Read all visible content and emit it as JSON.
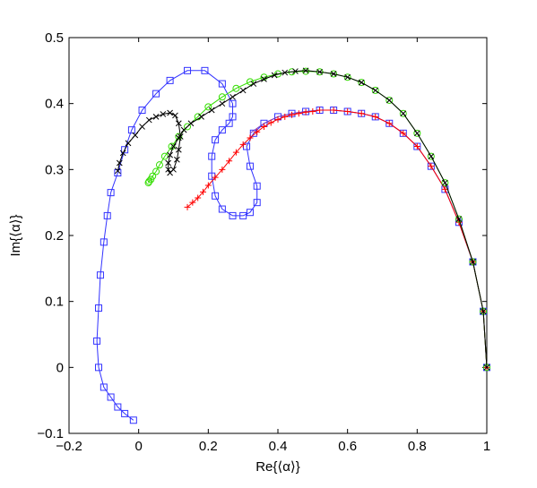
{
  "chart_data": {
    "type": "line",
    "xlabel": "Re{⟨α⟩}",
    "ylabel": "Im{⟨α⟩}",
    "xlim": [
      -0.2,
      1
    ],
    "ylim": [
      -0.1,
      0.5
    ],
    "xticks": [
      -0.2,
      0,
      0.2,
      0.4,
      0.6,
      0.8,
      1
    ],
    "yticks": [
      -0.1,
      0,
      0.1,
      0.2,
      0.3,
      0.4,
      0.5
    ],
    "xtick_labels": [
      "−0.2",
      "0",
      "0.2",
      "0.4",
      "0.6",
      "0.8",
      "1"
    ],
    "ytick_labels": [
      "−0.1",
      "0",
      "0.1",
      "0.2",
      "0.3",
      "0.4",
      "0.5"
    ],
    "grid": false,
    "legend": "none",
    "series": [
      {
        "color": "#3333ff",
        "marker": "square",
        "x": [
          1.0,
          0.99,
          0.96,
          0.92,
          0.88,
          0.84,
          0.8,
          0.76,
          0.72,
          0.68,
          0.64,
          0.6,
          0.56,
          0.52,
          0.48,
          0.44,
          0.4,
          0.36,
          0.33,
          0.31,
          0.32,
          0.34,
          0.34,
          0.32,
          0.3,
          0.27,
          0.24,
          0.22,
          0.21,
          0.21,
          0.22,
          0.24,
          0.26,
          0.27,
          0.27,
          0.24,
          0.19,
          0.14,
          0.09,
          0.05,
          0.01,
          -0.02,
          -0.04,
          -0.06,
          -0.08,
          -0.09,
          -0.1,
          -0.11,
          -0.115,
          -0.12,
          -0.115,
          -0.1,
          -0.08,
          -0.06,
          -0.04,
          -0.015
        ],
        "y": [
          0.0,
          0.085,
          0.16,
          0.22,
          0.27,
          0.305,
          0.335,
          0.355,
          0.37,
          0.38,
          0.385,
          0.388,
          0.39,
          0.39,
          0.388,
          0.385,
          0.38,
          0.37,
          0.355,
          0.335,
          0.305,
          0.275,
          0.25,
          0.235,
          0.23,
          0.23,
          0.24,
          0.26,
          0.29,
          0.32,
          0.345,
          0.36,
          0.37,
          0.38,
          0.4,
          0.43,
          0.45,
          0.45,
          0.435,
          0.415,
          0.39,
          0.36,
          0.33,
          0.295,
          0.265,
          0.23,
          0.19,
          0.14,
          0.09,
          0.04,
          0.0,
          -0.03,
          -0.045,
          -0.06,
          -0.07,
          -0.08
        ]
      },
      {
        "color": "#8040c0",
        "marker": "none",
        "x": [
          1.0,
          0.99,
          0.96,
          0.92,
          0.88,
          0.84,
          0.8,
          0.76,
          0.72,
          0.68,
          0.64,
          0.6,
          0.56,
          0.52,
          0.48,
          0.44,
          0.4,
          0.36,
          0.32
        ],
        "y": [
          0.0,
          0.085,
          0.16,
          0.22,
          0.27,
          0.305,
          0.335,
          0.355,
          0.37,
          0.38,
          0.385,
          0.388,
          0.39,
          0.39,
          0.388,
          0.385,
          0.38,
          0.37,
          0.355
        ]
      },
      {
        "color": "#ff0000",
        "marker": "plus",
        "x": [
          1.0,
          0.99,
          0.96,
          0.92,
          0.88,
          0.84,
          0.8,
          0.76,
          0.72,
          0.68,
          0.64,
          0.6,
          0.56,
          0.52,
          0.5,
          0.48,
          0.46,
          0.44,
          0.42,
          0.4,
          0.38,
          0.36,
          0.34,
          0.32,
          0.3,
          0.28,
          0.26,
          0.24,
          0.22,
          0.2,
          0.185,
          0.17,
          0.155,
          0.14
        ],
        "y": [
          0.0,
          0.085,
          0.16,
          0.22,
          0.27,
          0.305,
          0.335,
          0.355,
          0.37,
          0.38,
          0.385,
          0.388,
          0.39,
          0.39,
          0.388,
          0.387,
          0.385,
          0.383,
          0.38,
          0.376,
          0.371,
          0.365,
          0.357,
          0.348,
          0.338,
          0.326,
          0.313,
          0.3,
          0.288,
          0.276,
          0.266,
          0.257,
          0.25,
          0.243
        ]
      },
      {
        "color": "#33dd00",
        "marker": "circle",
        "x": [
          1.0,
          0.99,
          0.96,
          0.92,
          0.88,
          0.84,
          0.8,
          0.76,
          0.72,
          0.68,
          0.64,
          0.6,
          0.56,
          0.52,
          0.48,
          0.44,
          0.4,
          0.36,
          0.32,
          0.28,
          0.24,
          0.2,
          0.17,
          0.14,
          0.115,
          0.095,
          0.075,
          0.06,
          0.05,
          0.04,
          0.035,
          0.03,
          0.028
        ],
        "y": [
          0.0,
          0.085,
          0.16,
          0.225,
          0.28,
          0.32,
          0.355,
          0.385,
          0.405,
          0.42,
          0.432,
          0.44,
          0.445,
          0.448,
          0.449,
          0.448,
          0.445,
          0.44,
          0.433,
          0.423,
          0.41,
          0.395,
          0.38,
          0.365,
          0.35,
          0.335,
          0.32,
          0.307,
          0.297,
          0.29,
          0.285,
          0.282,
          0.28
        ]
      },
      {
        "color": "#000000",
        "marker": "x",
        "x": [
          1.0,
          0.99,
          0.96,
          0.92,
          0.88,
          0.84,
          0.8,
          0.76,
          0.72,
          0.68,
          0.64,
          0.6,
          0.56,
          0.52,
          0.48,
          0.45,
          0.42,
          0.39,
          0.36,
          0.33,
          0.3,
          0.27,
          0.24,
          0.21,
          0.18,
          0.15,
          0.13,
          0.115,
          0.1,
          0.09,
          0.085,
          0.085,
          0.09,
          0.1,
          0.11,
          0.115,
          0.12,
          0.115,
          0.105,
          0.09,
          0.07,
          0.05,
          0.03,
          0.01,
          -0.01,
          -0.03,
          -0.045,
          -0.055,
          -0.06
        ],
        "y": [
          0.0,
          0.085,
          0.16,
          0.225,
          0.28,
          0.32,
          0.355,
          0.385,
          0.405,
          0.42,
          0.432,
          0.44,
          0.445,
          0.448,
          0.45,
          0.449,
          0.447,
          0.443,
          0.437,
          0.43,
          0.42,
          0.41,
          0.4,
          0.39,
          0.38,
          0.37,
          0.36,
          0.348,
          0.335,
          0.322,
          0.31,
          0.3,
          0.295,
          0.3,
          0.315,
          0.33,
          0.35,
          0.37,
          0.382,
          0.386,
          0.384,
          0.38,
          0.375,
          0.365,
          0.352,
          0.34,
          0.325,
          0.31,
          0.298
        ]
      }
    ]
  }
}
